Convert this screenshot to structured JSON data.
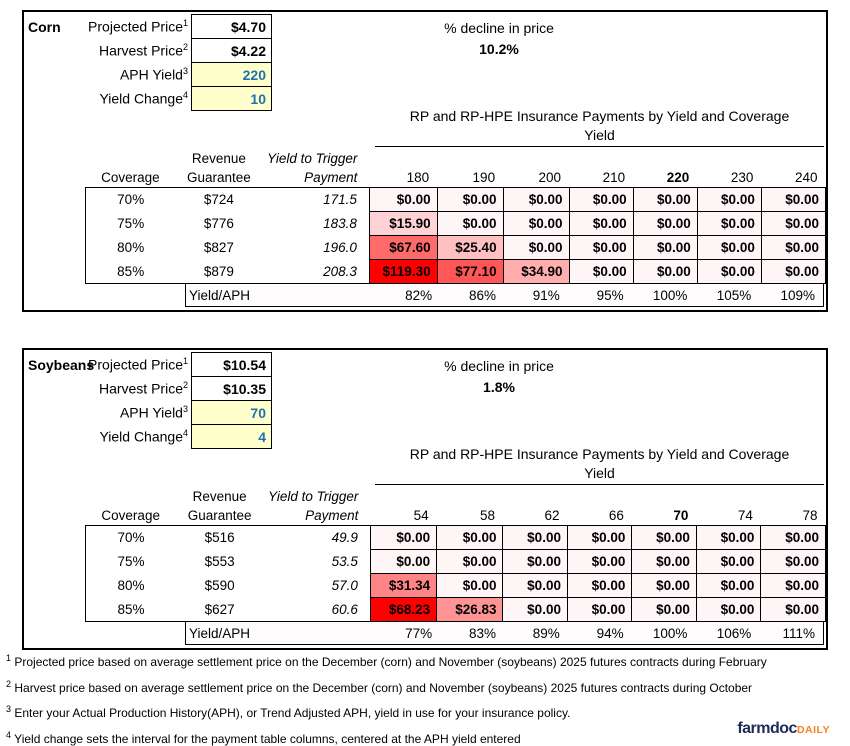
{
  "colors": {
    "max_red": "#FF0000",
    "zero_cell_bg": "#FDF5F6",
    "input_yellow_bg": "#FFFFCC",
    "input_blue_text": "#1F6FB5",
    "logo_navy": "#1F2A5B",
    "logo_orange": "#F58220"
  },
  "sections": [
    {
      "crop": "Corn",
      "inputs": [
        {
          "label": "Projected Price",
          "sup": "1",
          "value": "$4.70",
          "editable": false
        },
        {
          "label": "Harvest Price",
          "sup": "2",
          "value": "$4.22",
          "editable": false
        },
        {
          "label": "APH Yield",
          "sup": "3",
          "value": "220",
          "editable": true
        },
        {
          "label": "Yield Change",
          "sup": "4",
          "value": "10",
          "editable": true
        }
      ],
      "decline_label": "% decline in price",
      "decline_value": "10.2%",
      "table_title": "RP and RP-HPE Insurance Payments by Yield and Coverage",
      "yield_axis_label": "Yield",
      "headers": {
        "coverage": "Coverage",
        "revenue_line1": "Revenue",
        "revenue_line2": "Guarantee",
        "trigger_line1": "Yield to Trigger",
        "trigger_line2": "Payment"
      },
      "yield_columns": [
        "180",
        "190",
        "200",
        "210",
        "220",
        "230",
        "240"
      ],
      "aph_column_index": 4,
      "rows": [
        {
          "coverage": "70%",
          "revenue": "$724",
          "trigger": "171.5",
          "payments": [
            0,
            0,
            0,
            0,
            0,
            0,
            0
          ]
        },
        {
          "coverage": "75%",
          "revenue": "$776",
          "trigger": "183.8",
          "payments": [
            15.9,
            0,
            0,
            0,
            0,
            0,
            0
          ]
        },
        {
          "coverage": "80%",
          "revenue": "$827",
          "trigger": "196.0",
          "payments": [
            67.6,
            25.4,
            0,
            0,
            0,
            0,
            0
          ]
        },
        {
          "coverage": "85%",
          "revenue": "$879",
          "trigger": "208.3",
          "payments": [
            119.3,
            77.1,
            34.9,
            0,
            0,
            0,
            0
          ]
        }
      ],
      "max_payment": 119.3,
      "yield_aph_label": "Yield/APH",
      "yield_aph_values": [
        "82%",
        "86%",
        "91%",
        "95%",
        "100%",
        "105%",
        "109%"
      ]
    },
    {
      "crop": "Soybeans",
      "inputs": [
        {
          "label": "Projected Price",
          "sup": "1",
          "value": "$10.54",
          "editable": false
        },
        {
          "label": "Harvest Price",
          "sup": "2",
          "value": "$10.35",
          "editable": false
        },
        {
          "label": "APH Yield",
          "sup": "3",
          "value": "70",
          "editable": true
        },
        {
          "label": "Yield Change",
          "sup": "4",
          "value": "4",
          "editable": true
        }
      ],
      "decline_label": "% decline in price",
      "decline_value": "1.8%",
      "table_title": "RP and RP-HPE Insurance Payments by Yield and Coverage",
      "yield_axis_label": "Yield",
      "headers": {
        "coverage": "Coverage",
        "revenue_line1": "Revenue",
        "revenue_line2": "Guarantee",
        "trigger_line1": "Yield to Trigger",
        "trigger_line2": "Payment"
      },
      "yield_columns": [
        "54",
        "58",
        "62",
        "66",
        "70",
        "74",
        "78"
      ],
      "aph_column_index": 4,
      "rows": [
        {
          "coverage": "70%",
          "revenue": "$516",
          "trigger": "49.9",
          "payments": [
            0,
            0,
            0,
            0,
            0,
            0,
            0
          ]
        },
        {
          "coverage": "75%",
          "revenue": "$553",
          "trigger": "53.5",
          "payments": [
            0,
            0,
            0,
            0,
            0,
            0,
            0
          ]
        },
        {
          "coverage": "80%",
          "revenue": "$590",
          "trigger": "57.0",
          "payments": [
            31.34,
            0,
            0,
            0,
            0,
            0,
            0
          ]
        },
        {
          "coverage": "85%",
          "revenue": "$627",
          "trigger": "60.6",
          "payments": [
            68.23,
            26.83,
            0,
            0,
            0,
            0,
            0
          ]
        }
      ],
      "max_payment": 68.23,
      "yield_aph_label": "Yield/APH",
      "yield_aph_values": [
        "77%",
        "83%",
        "89%",
        "94%",
        "100%",
        "106%",
        "111%"
      ]
    }
  ],
  "footnotes": [
    {
      "sup": "1",
      "text": "Projected price based on average settlement price on the December (corn) and November (soybeans) 2025 futures contracts during February"
    },
    {
      "sup": "2",
      "text": "Harvest price based on average settlement price on the December (corn) and November (soybeans) 2025 futures contracts during October"
    },
    {
      "sup": "3",
      "text": "Enter your Actual Production History(APH), or Trend Adjusted APH, yield in use for your insurance policy."
    },
    {
      "sup": "4",
      "text": "Yield change sets the interval for the payment table columns, centered at the APH yield entered"
    }
  ],
  "logo": {
    "brand": "farmdoc",
    "suffix": "DAILY"
  }
}
